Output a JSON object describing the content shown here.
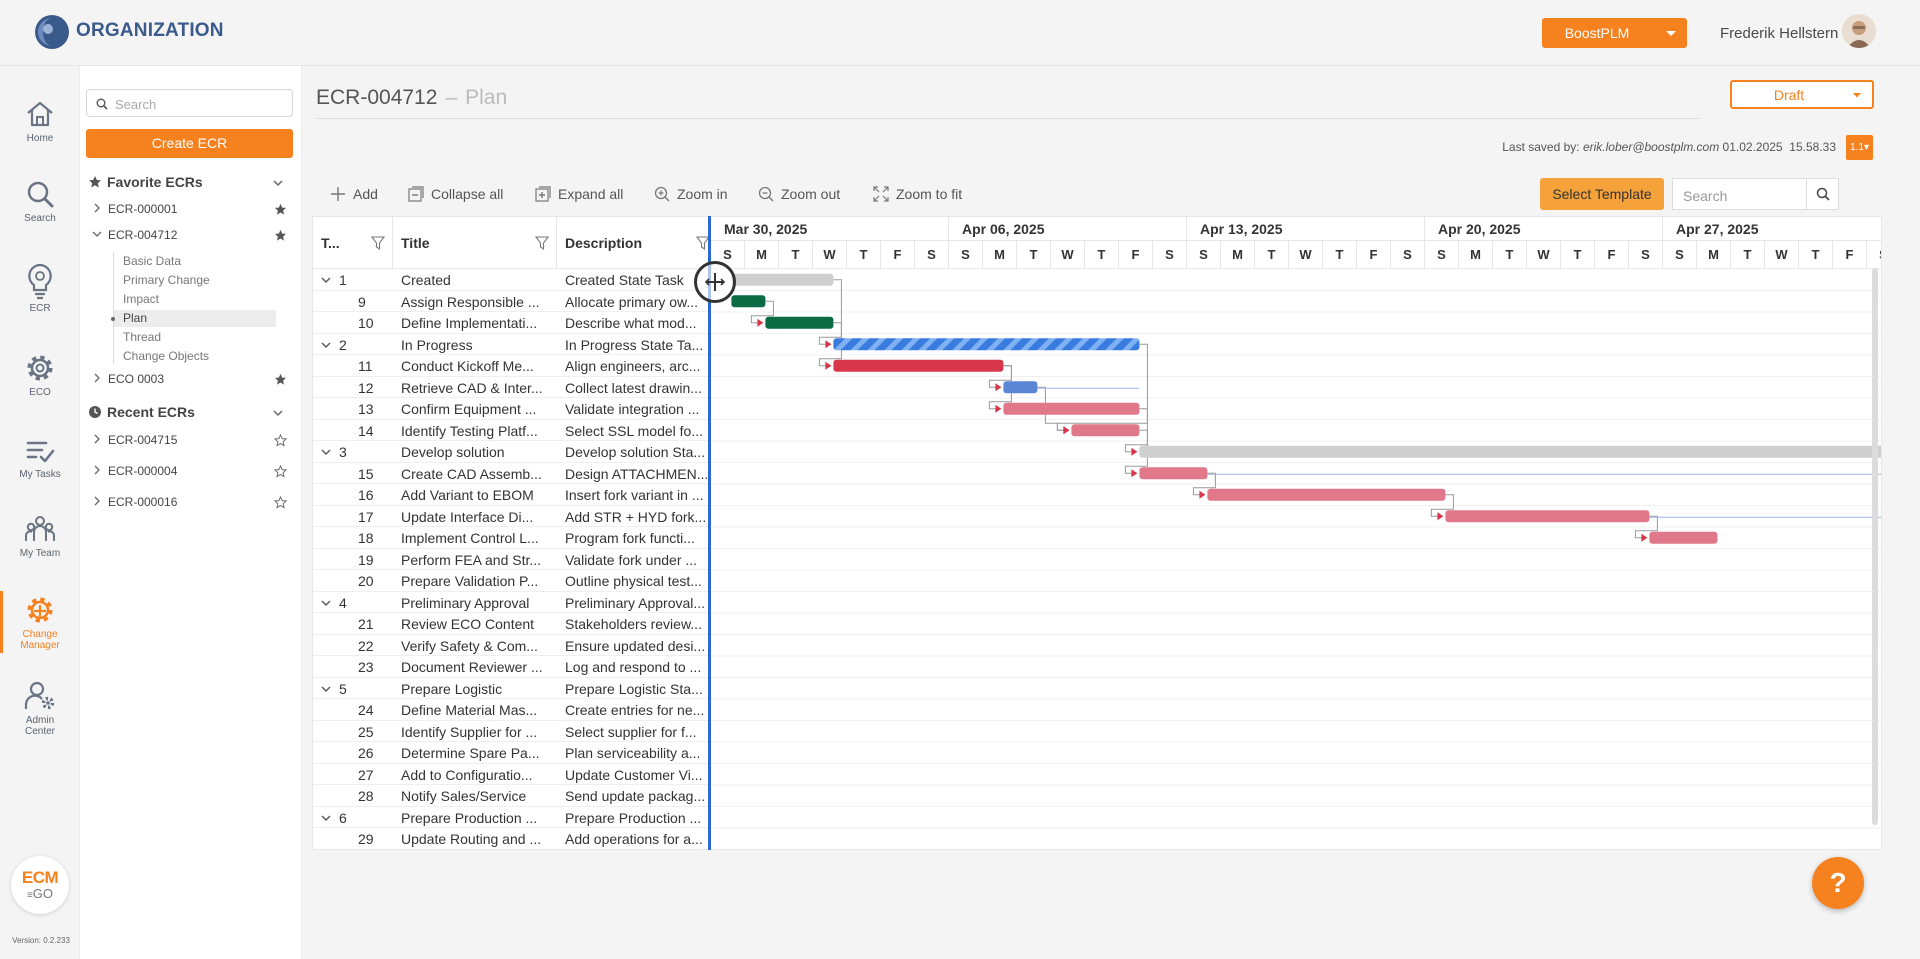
{
  "header": {
    "org_name": "ORGANIZATION",
    "product_label": "BoostPLM",
    "user_name": "Frederik Hellstern"
  },
  "nav": {
    "items": [
      {
        "label": "Home",
        "icon": "home-icon"
      },
      {
        "label": "Search",
        "icon": "search-icon"
      },
      {
        "label": "ECR",
        "icon": "lightbulb-icon"
      },
      {
        "label": "ECO",
        "icon": "gear-icon"
      },
      {
        "label": "My Tasks",
        "icon": "tasks-icon"
      },
      {
        "label": "My Team",
        "icon": "team-icon"
      },
      {
        "label": "Change Manager",
        "icon": "change-manager-icon"
      },
      {
        "label": "Admin Center",
        "icon": "admin-icon"
      }
    ],
    "active_index": 6,
    "logo_text_top": "ECM",
    "logo_text_bottom": "GO",
    "version": "Version: 0.2.233"
  },
  "sidebar": {
    "search_placeholder": "Search",
    "create_label": "Create ECR",
    "favorites_title": "Favorite ECRs",
    "favorites": [
      {
        "label": "ECR-000001",
        "starred": true,
        "expanded": false
      },
      {
        "label": "ECR-004712",
        "starred": true,
        "expanded": true
      },
      {
        "label": "ECO 0003",
        "starred": true,
        "expanded": false
      }
    ],
    "sub_items": [
      "Basic Data",
      "Primary Change",
      "Impact",
      "Plan",
      "Thread",
      "Change Objects"
    ],
    "active_sub": "Plan",
    "recent_title": "Recent ECRs",
    "recent": [
      {
        "label": "ECR-004715",
        "starred": false
      },
      {
        "label": "ECR-000004",
        "starred": false
      },
      {
        "label": "ECR-000016",
        "starred": false
      }
    ]
  },
  "page": {
    "ecr_id": "ECR-004712",
    "separator": "–",
    "subtitle": "Plan",
    "status": "Draft",
    "last_saved_prefix": "Last saved by:",
    "last_saved_user": "erik.lober@boostplm.com",
    "last_saved_date": "01.02.2025",
    "last_saved_time": "15.58.33",
    "version_badge": "1.1"
  },
  "toolbar": {
    "add": "Add",
    "collapse_all": "Collapse all",
    "expand_all": "Expand all",
    "zoom_in": "Zoom in",
    "zoom_out": "Zoom out",
    "zoom_to_fit": "Zoom to fit",
    "select_template": "Select Template",
    "search_placeholder": "Search"
  },
  "grid": {
    "columns": [
      "T...",
      "Title",
      "Description"
    ],
    "rows": [
      {
        "id": "1",
        "parent": true,
        "title": "Created",
        "desc": "Created State Task"
      },
      {
        "id": "9",
        "parent": false,
        "title": "Assign Responsible ...",
        "desc": "Allocate primary ow..."
      },
      {
        "id": "10",
        "parent": false,
        "title": "Define Implementati...",
        "desc": "Describe what mod..."
      },
      {
        "id": "2",
        "parent": true,
        "title": "In Progress",
        "desc": "In Progress State Ta..."
      },
      {
        "id": "11",
        "parent": false,
        "title": "Conduct Kickoff Me...",
        "desc": "Align engineers, arc..."
      },
      {
        "id": "12",
        "parent": false,
        "title": "Retrieve CAD & Inter...",
        "desc": "Collect latest drawin..."
      },
      {
        "id": "13",
        "parent": false,
        "title": "Confirm Equipment ...",
        "desc": "Validate integration ..."
      },
      {
        "id": "14",
        "parent": false,
        "title": "Identify Testing Platf...",
        "desc": "Select SSL model fo..."
      },
      {
        "id": "3",
        "parent": true,
        "title": "Develop solution",
        "desc": "Develop solution Sta..."
      },
      {
        "id": "15",
        "parent": false,
        "title": "Create CAD Assemb...",
        "desc": "Design ATTACHMEN..."
      },
      {
        "id": "16",
        "parent": false,
        "title": "Add Variant to EBOM",
        "desc": "Insert fork variant in ..."
      },
      {
        "id": "17",
        "parent": false,
        "title": "Update Interface Di...",
        "desc": "Add STR + HYD fork..."
      },
      {
        "id": "18",
        "parent": false,
        "title": "Implement Control L...",
        "desc": "Program fork functi..."
      },
      {
        "id": "19",
        "parent": false,
        "title": "Perform FEA and Str...",
        "desc": "Validate fork under ..."
      },
      {
        "id": "20",
        "parent": false,
        "title": "Prepare Validation P...",
        "desc": "Outline physical test..."
      },
      {
        "id": "4",
        "parent": true,
        "title": "Preliminary Approval",
        "desc": "Preliminary Approval..."
      },
      {
        "id": "21",
        "parent": false,
        "title": "Review ECO Content",
        "desc": "Stakeholders review..."
      },
      {
        "id": "22",
        "parent": false,
        "title": "Verify Safety & Com...",
        "desc": "Ensure updated desi..."
      },
      {
        "id": "23",
        "parent": false,
        "title": "Document Reviewer ...",
        "desc": "Log and respond to ..."
      },
      {
        "id": "5",
        "parent": true,
        "title": "Prepare Logistic",
        "desc": "Prepare Logistic Sta..."
      },
      {
        "id": "24",
        "parent": false,
        "title": "Define Material Mas...",
        "desc": "Create entries for ne..."
      },
      {
        "id": "25",
        "parent": false,
        "title": "Identify Supplier for ...",
        "desc": "Select supplier for f..."
      },
      {
        "id": "26",
        "parent": false,
        "title": "Determine Spare Pa...",
        "desc": "Plan serviceability a..."
      },
      {
        "id": "27",
        "parent": false,
        "title": "Add to Configuratio...",
        "desc": "Update Customer Vi..."
      },
      {
        "id": "28",
        "parent": false,
        "title": "Notify Sales/Service",
        "desc": "Send update packag..."
      },
      {
        "id": "6",
        "parent": true,
        "title": "Prepare Production ...",
        "desc": "Prepare Production ..."
      },
      {
        "id": "29",
        "parent": false,
        "title": "Update Routing and ...",
        "desc": "Add operations for a..."
      }
    ]
  },
  "timeline": {
    "weeks": [
      "Mar 30, 2025",
      "Apr 06, 2025",
      "Apr 13, 2025",
      "Apr 20, 2025",
      "Apr 27, 2025"
    ],
    "day_letters": [
      "S",
      "M",
      "T",
      "W",
      "T",
      "F",
      "S"
    ],
    "start_date": "2025-03-30",
    "colors": {
      "parent_done": "#cfcfcf",
      "done": "#0b6b45",
      "active": "#3a7be0",
      "late": "#d8364a",
      "planned": "#e0788a",
      "planned_blue": "#5b86d6"
    },
    "bars": [
      {
        "row": 0,
        "start": 0.6,
        "end": 3.6,
        "style": "parent_done"
      },
      {
        "row": 1,
        "start": 0.6,
        "end": 1.6,
        "style": "done"
      },
      {
        "row": 2,
        "start": 1.6,
        "end": 3.6,
        "style": "done"
      },
      {
        "row": 3,
        "start": 3.6,
        "end": 12.6,
        "style": "active"
      },
      {
        "row": 4,
        "start": 3.6,
        "end": 8.6,
        "style": "late"
      },
      {
        "row": 5,
        "start": 8.6,
        "end": 9.6,
        "style": "planned_blue"
      },
      {
        "row": 6,
        "start": 8.6,
        "end": 12.6,
        "style": "planned"
      },
      {
        "row": 7,
        "start": 10.6,
        "end": 12.6,
        "style": "planned"
      },
      {
        "row": 8,
        "start": 12.6,
        "end": 34.5,
        "style": "parent_done"
      },
      {
        "row": 9,
        "start": 12.6,
        "end": 14.6,
        "style": "planned"
      },
      {
        "row": 10,
        "start": 14.6,
        "end": 21.6,
        "style": "planned"
      },
      {
        "row": 11,
        "start": 21.6,
        "end": 27.6,
        "style": "planned"
      },
      {
        "row": 12,
        "start": 27.6,
        "end": 29.6,
        "style": "planned"
      }
    ]
  }
}
